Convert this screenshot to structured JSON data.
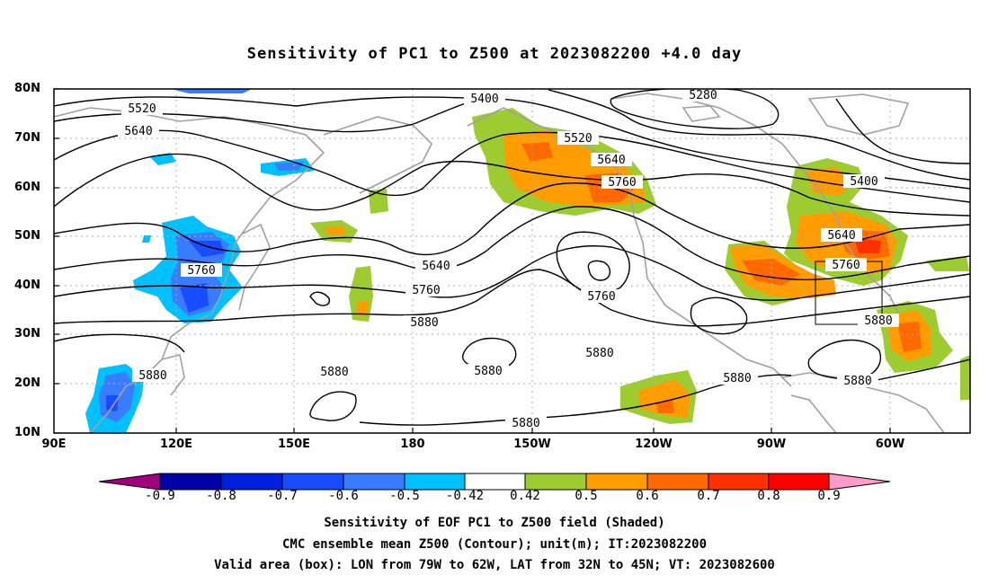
{
  "title": "Sensitivity of PC1 to Z500 at 2023082200 +4.0 day",
  "map": {
    "lat_ticks": [
      "80N",
      "70N",
      "60N",
      "50N",
      "40N",
      "30N",
      "20N",
      "10N"
    ],
    "lon_ticks": [
      "90E",
      "120E",
      "150E",
      "180",
      "150W",
      "120W",
      "90W",
      "60W"
    ],
    "contour_labels": [
      "5520",
      "5640",
      "5400",
      "5280",
      "5520",
      "5640",
      "5760",
      "5400",
      "5640",
      "5760",
      "5760",
      "5640",
      "5760",
      "5880",
      "5760",
      "5880",
      "5880",
      "5880",
      "5880",
      "5880",
      "5880",
      "5880",
      "5880"
    ],
    "contour_color": "#000000",
    "coastline_color": "#a0a0a0",
    "valid_box_color": "#000000"
  },
  "colorbar": {
    "labels": [
      "-0.9",
      "-0.8",
      "-0.7",
      "-0.6",
      "-0.5",
      "-0.42",
      "0.42",
      "0.5",
      "0.6",
      "0.7",
      "0.8",
      "0.9"
    ],
    "colors": [
      "#a0007e",
      "#0000a8",
      "#0020e0",
      "#1a4cff",
      "#3a7cff",
      "#00c0ff",
      "#ffffff",
      "#9ccc2f",
      "#ff9c00",
      "#ff6a00",
      "#ff3000",
      "#ff0000",
      "#ff9ccc"
    ]
  },
  "captions": [
    "Sensitivity of EOF PC1 to Z500 field (Shaded)",
    "CMC ensemble mean Z500 (Contour); unit(m); IT:2023082200",
    "Valid area (box): LON from 79W to 62W, LAT from 32N to 45N; VT: 2023082600"
  ]
}
